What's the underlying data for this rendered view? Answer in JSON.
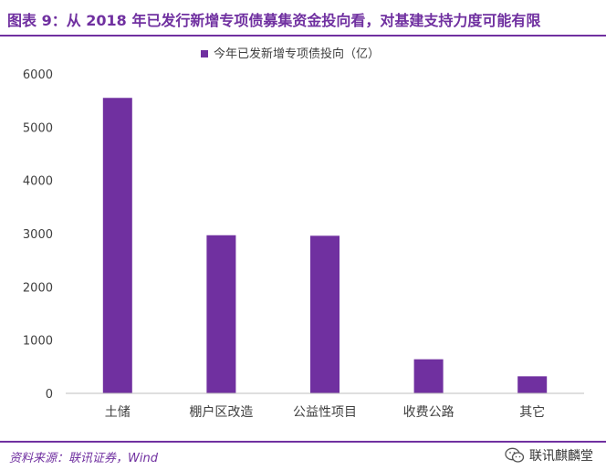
{
  "header": {
    "title": "图表 9：从 2018 年已发行新增专项债募集资金投向看，对基建支持力度可能有限"
  },
  "chart_data": {
    "type": "bar",
    "title": "",
    "xlabel": "",
    "ylabel": "",
    "categories": [
      "土储",
      "棚户区改造",
      "公益性项目",
      "收费公路",
      "其它"
    ],
    "series": [
      {
        "name": "今年已发新增专项债投向（亿）",
        "values": [
          5550,
          2970,
          2960,
          640,
          320
        ]
      }
    ],
    "ylim": [
      0,
      6000
    ],
    "yticks": [
      0,
      1000,
      2000,
      3000,
      4000,
      5000,
      6000
    ],
    "grid": false,
    "legend_position": "top-center",
    "colors": {
      "bar": "#7030a0",
      "axis": "#bfbfbf",
      "text": "#404040"
    }
  },
  "footer": {
    "source": "资料来源：联讯证券，Wind",
    "watermark": "联讯麒麟堂",
    "watermark_icon": "wechat-icon"
  }
}
